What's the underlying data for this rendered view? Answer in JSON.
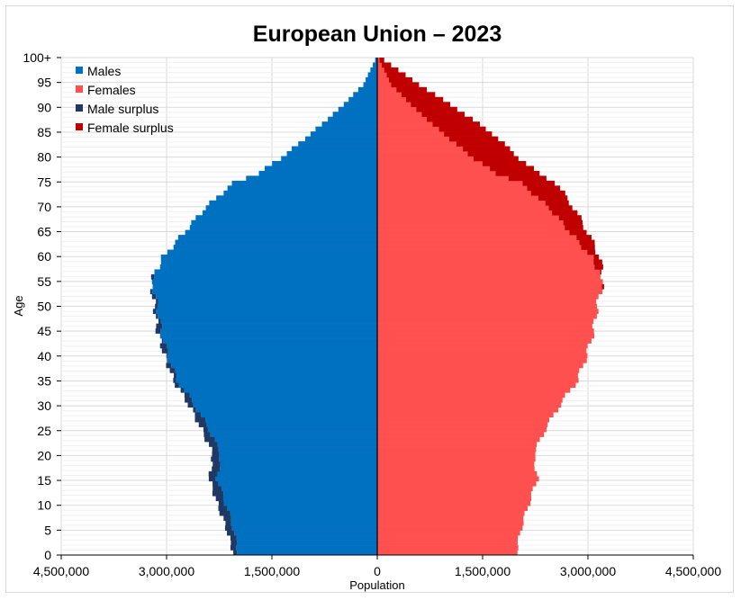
{
  "chart_data": {
    "type": "bar",
    "orientation": "horizontal-population-pyramid",
    "title": "European Union – 2023",
    "xlabel": "Population",
    "ylabel": "Age",
    "xlim": [
      -4500000,
      4500000
    ],
    "ylim": [
      0,
      100
    ],
    "x_tick_values": [
      -4500000,
      -3000000,
      -1500000,
      0,
      1500000,
      3000000,
      4500000
    ],
    "x_tick_labels": [
      "4,500,000",
      "3,000,000",
      "1,500,000",
      "0",
      "1,500,000",
      "3,000,000",
      "4,500,000"
    ],
    "y_tick_values": [
      0,
      5,
      10,
      15,
      20,
      25,
      30,
      35,
      40,
      45,
      50,
      55,
      60,
      65,
      70,
      75,
      80,
      85,
      90,
      95,
      100
    ],
    "y_tick_labels": [
      "0",
      "5",
      "10",
      "15",
      "20",
      "25",
      "30",
      "35",
      "40",
      "45",
      "50",
      "55",
      "60",
      "65",
      "70",
      "75",
      "80",
      "85",
      "90",
      "95",
      "100+"
    ],
    "grid": true,
    "legend_position": "top-left",
    "legend": [
      {
        "label": "Males",
        "color": "#0070c0"
      },
      {
        "label": "Females",
        "color": "#ff5050"
      },
      {
        "label": "Male surplus",
        "color": "#1f3864"
      },
      {
        "label": "Female surplus",
        "color": "#c00000"
      }
    ],
    "age_anchors": [
      0,
      5,
      10,
      15,
      20,
      25,
      30,
      35,
      40,
      45,
      50,
      55,
      60,
      65,
      70,
      75,
      77,
      80,
      85,
      90,
      95,
      100
    ],
    "males_anchors": [
      2050000,
      2150000,
      2280000,
      2390000,
      2340000,
      2500000,
      2680000,
      2900000,
      3030000,
      3130000,
      3170000,
      3230000,
      3050000,
      2750000,
      2450000,
      2050000,
      1700000,
      1380000,
      950000,
      550000,
      200000,
      30000
    ],
    "females_anchors": [
      1980000,
      2050000,
      2160000,
      2280000,
      2230000,
      2390000,
      2600000,
      2850000,
      2980000,
      3080000,
      3130000,
      3220000,
      3170000,
      3000000,
      2800000,
      2550000,
      2300000,
      2030000,
      1650000,
      1150000,
      600000,
      100000
    ],
    "series": [
      {
        "name": "Males",
        "side": "left",
        "color": "#0070c0"
      },
      {
        "name": "Females",
        "side": "right",
        "color": "#ff5050"
      }
    ]
  }
}
